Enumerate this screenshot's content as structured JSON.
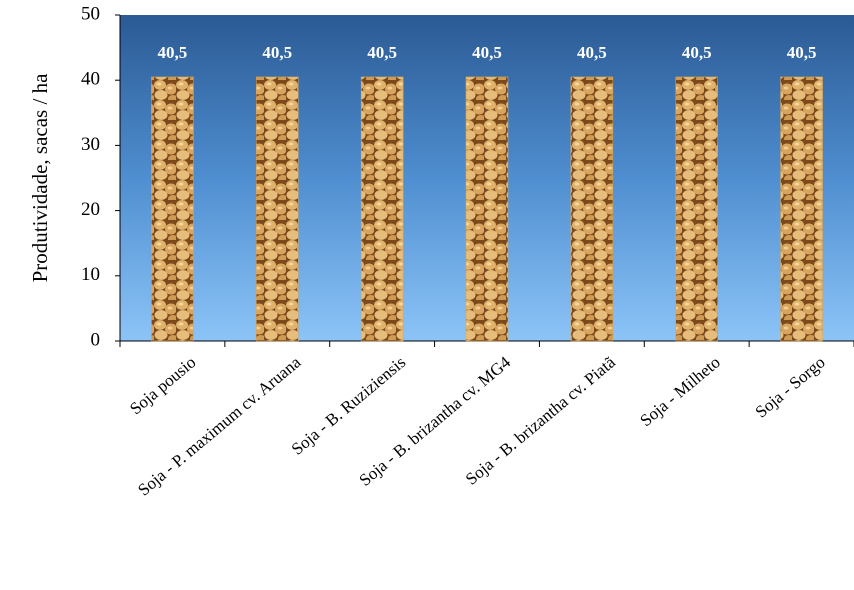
{
  "chart_data": {
    "type": "bar",
    "y_label": "Produtividade, sacas / ha",
    "categories": [
      "Soja pousio",
      "Soja - P. maximum cv. Aruana",
      "Soja - B. Ruziziensis",
      "Soja - B. brizantha cv. MG4",
      "Soja - B. brizantha cv. Piatã",
      "Soja - Milheto",
      "Soja - Sorgo"
    ],
    "values": [
      40.5,
      40.5,
      40.5,
      40.5,
      40.5,
      40.5,
      40.5
    ],
    "value_labels": [
      "40,5",
      "40,5",
      "40,5",
      "40,5",
      "40,5",
      "40,5",
      "40,5"
    ],
    "color": "#d8a65c",
    "ylim": [
      0,
      50
    ],
    "yticks": [
      0,
      10,
      20,
      30,
      40,
      50
    ]
  }
}
